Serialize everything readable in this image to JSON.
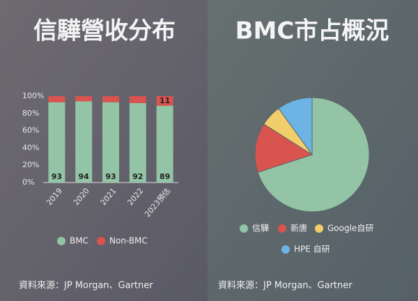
{
  "chart_data": [
    {
      "type": "stacked_bar",
      "title": "信驊營收分布",
      "source": "資料來源：JP Morgan、Gartner",
      "categories": [
        "2019",
        "2020",
        "2021",
        "2022",
        "2023預估"
      ],
      "series": [
        {
          "name": "BMC",
          "color": "#93c4a5",
          "values": [
            93,
            94,
            93,
            92,
            89
          ],
          "value_labels": [
            "93",
            "94",
            "93",
            "92",
            "89"
          ]
        },
        {
          "name": "Non-BMC",
          "color": "#d9534f",
          "values": [
            7,
            6,
            7,
            8,
            11
          ],
          "value_labels": [
            null,
            null,
            null,
            null,
            "11"
          ]
        }
      ],
      "ylim": [
        0,
        100
      ],
      "yticks": [
        {
          "value": 0,
          "label": "0%"
        },
        {
          "value": 20,
          "label": "20%"
        },
        {
          "value": 40,
          "label": "40%"
        },
        {
          "value": 60,
          "label": "60%"
        },
        {
          "value": 80,
          "label": "80%"
        },
        {
          "value": 100,
          "label": "100%"
        }
      ],
      "legend": "bottom"
    },
    {
      "type": "pie",
      "title": "BMC市占概況",
      "source": "資料來源：JP Morgan、Gartner",
      "categories": [
        "信驊",
        "新唐",
        "Google自研",
        "HPE 自研"
      ],
      "values": [
        70,
        14,
        6,
        10
      ],
      "colors": [
        "#93c4a5",
        "#d9534f",
        "#f0cf6a",
        "#6cb4e6"
      ],
      "legend": "bottom"
    }
  ]
}
